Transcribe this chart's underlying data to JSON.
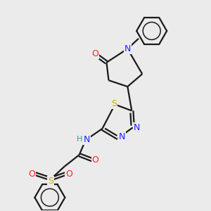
{
  "background_color": "#ebebeb",
  "bond_color": "#1a1a1a",
  "atom_colors": {
    "N": "#2020ff",
    "O": "#ff2020",
    "S": "#b8b800",
    "H": "#20a0a0",
    "C": "#1a1a1a"
  },
  "figsize": [
    3.0,
    3.0
  ],
  "dpi": 100,
  "xlim": [
    0,
    10
  ],
  "ylim": [
    0,
    10
  ]
}
